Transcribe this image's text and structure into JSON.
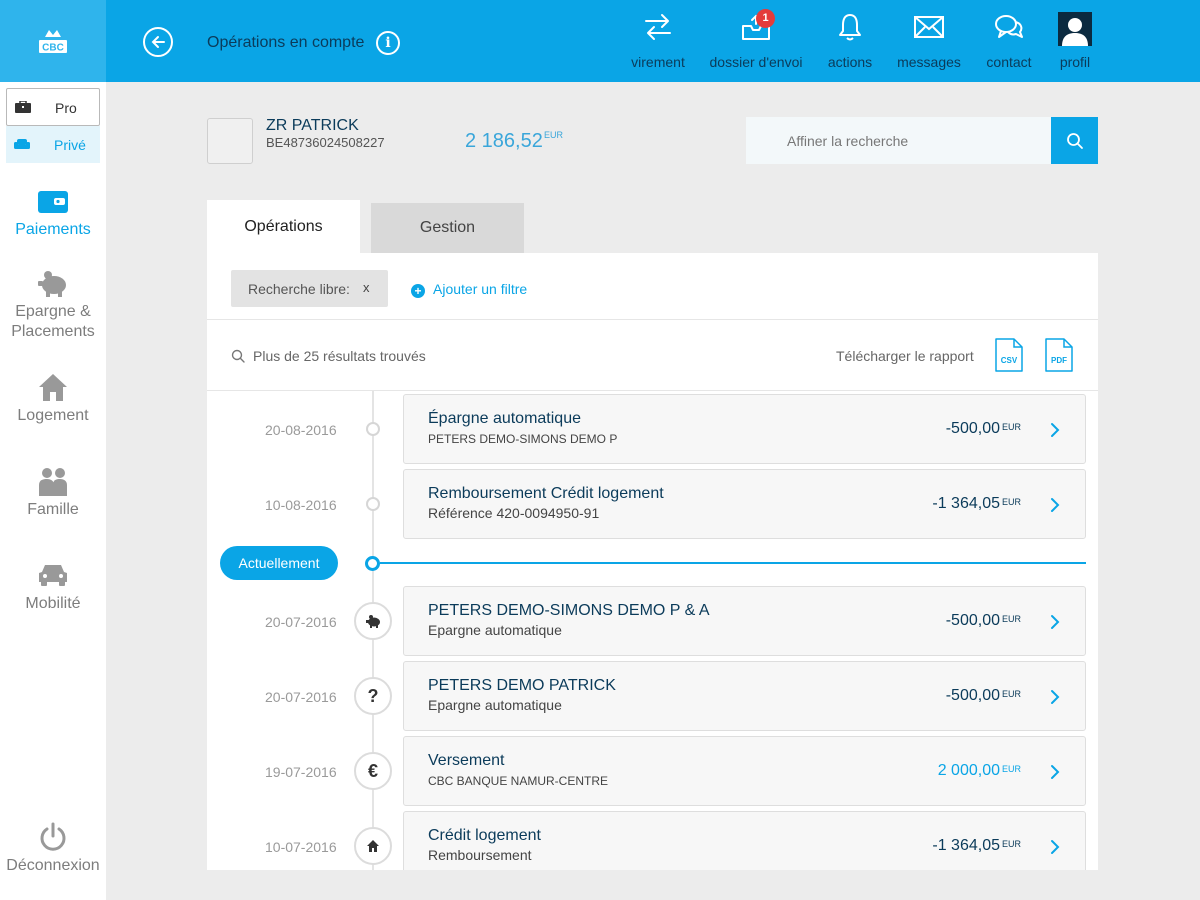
{
  "brand": {
    "logo_text": "CBC",
    "accent": "#0aa5e6",
    "navy": "#0b3b5a"
  },
  "header": {
    "title": "Opérations en compte",
    "nav": [
      {
        "label": "virement",
        "icon": "transfer-arrows-icon"
      },
      {
        "label": "dossier d'envoi",
        "icon": "outbox-tray-icon",
        "badge": "1"
      },
      {
        "label": "actions",
        "icon": "bell-icon"
      },
      {
        "label": "messages",
        "icon": "envelope-icon"
      },
      {
        "label": "contact",
        "icon": "chat-bubbles-icon"
      },
      {
        "label": "profil",
        "icon": "user-avatar-icon"
      }
    ]
  },
  "sidebar": {
    "segment": {
      "pro": "Pro",
      "prive": "Privé",
      "selected": "Privé"
    },
    "items": [
      {
        "label": "Paiements",
        "icon": "wallet-icon",
        "active": true
      },
      {
        "label": "Epargne & Placements",
        "icon": "piggy-bank-icon",
        "active": false
      },
      {
        "label": "Logement",
        "icon": "house-icon",
        "active": false
      },
      {
        "label": "Famille",
        "icon": "family-icon",
        "active": false
      },
      {
        "label": "Mobilité",
        "icon": "car-icon",
        "active": false
      }
    ],
    "logout": "Déconnexion"
  },
  "account": {
    "name": "ZR PATRICK",
    "iban": "BE48736024508227",
    "balance": "2 186,52",
    "currency": "EUR"
  },
  "search": {
    "placeholder": "Affiner la recherche"
  },
  "tabs": [
    {
      "label": "Opérations",
      "active": true
    },
    {
      "label": "Gestion",
      "active": false
    }
  ],
  "filters": {
    "chip_label": "Recherche libre:",
    "chip_remove": "x",
    "add_filter": "Ajouter un filtre"
  },
  "results": {
    "count_text": "Plus de 25 résultats trouvés",
    "download_label": "Télécharger le rapport",
    "formats": [
      "CSV",
      "PDF"
    ]
  },
  "now_label": "Actuellement",
  "transactions": [
    {
      "date": "20-08-2016",
      "title": "Épargne automatique",
      "subtitle": "PETERS DEMO-SIMONS DEMO P",
      "amount": "-500,00",
      "currency": "EUR",
      "future": true
    },
    {
      "date": "10-08-2016",
      "title": "Remboursement Crédit logement",
      "subtitle": "Référence 420-0094950-91",
      "amount": "-1 364,05",
      "currency": "EUR",
      "future": true
    },
    {
      "date": "20-07-2016",
      "title": "PETERS DEMO-SIMONS DEMO P & A",
      "subtitle": "Epargne automatique",
      "amount": "-500,00",
      "currency": "EUR",
      "icon": "piggy-bank-icon"
    },
    {
      "date": "20-07-2016",
      "title": "PETERS DEMO PATRICK",
      "subtitle": "Epargne automatique",
      "amount": "-500,00",
      "currency": "EUR",
      "icon": "question-mark-icon",
      "glyph": "?"
    },
    {
      "date": "19-07-2016",
      "title": "Versement",
      "subtitle": "CBC BANQUE NAMUR-CENTRE",
      "amount": "2 000,00",
      "currency": "EUR",
      "icon": "euro-icon",
      "glyph": "€",
      "positive": true
    },
    {
      "date": "10-07-2016",
      "title": "Crédit logement",
      "subtitle": "Remboursement",
      "amount": "-1 364,05",
      "currency": "EUR",
      "icon": "house-icon"
    }
  ]
}
